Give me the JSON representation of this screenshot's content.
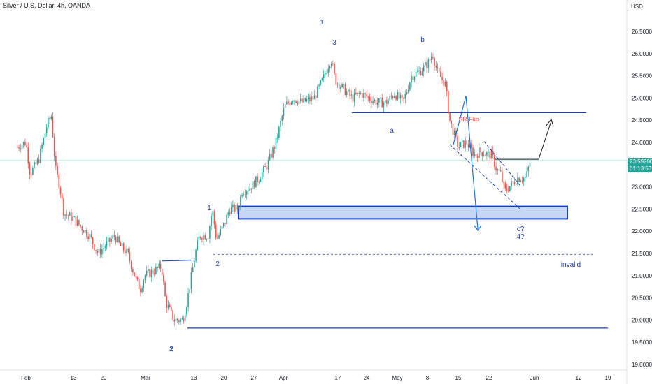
{
  "header": {
    "symbol_line": "Silver / U.S. Dollar, 4h, OANDA"
  },
  "currency_label": "USD",
  "price_badge": {
    "price": "23.59200",
    "countdown": "01:13:53"
  },
  "colors": {
    "up": "#26a69a",
    "down": "#ef5350",
    "annotation": "#1c3fbf",
    "zone_fill": "#bcd0f5",
    "price_line": "#7ed3c9",
    "sr_flip": "#ef5350"
  },
  "chart_data": {
    "type": "candlestick",
    "title": "Silver / U.S. Dollar, 4h, OANDA",
    "ylabel": "USD",
    "ylim": [
      18.95,
      26.95
    ],
    "y_ticks": [
      "19.00000",
      "19.50000",
      "20.00000",
      "20.50000",
      "21.00000",
      "21.50000",
      "22.00000",
      "22.50000",
      "23.00000",
      "23.50000",
      "24.00000",
      "24.50000",
      "25.00000",
      "25.50000",
      "26.00000",
      "26.50000"
    ],
    "y_tick_values": [
      19.0,
      19.5,
      20.0,
      20.5,
      21.0,
      21.5,
      22.0,
      22.5,
      23.0,
      23.5,
      24.0,
      24.5,
      25.0,
      25.5,
      26.0,
      26.5
    ],
    "x_ticks": [
      "Feb",
      "13",
      "20",
      "Mar",
      "13",
      "20",
      "27",
      "Apr",
      "17",
      "24",
      "May",
      "8",
      "15",
      "22",
      "Jun",
      "12",
      "19"
    ],
    "price_path": [
      [
        "Jan 30",
        23.9
      ],
      [
        "Feb 1",
        24.0
      ],
      [
        "Feb 2",
        23.3
      ],
      [
        "Feb 4",
        23.6
      ],
      [
        "Feb 6",
        24.4
      ],
      [
        "Feb 7",
        24.6
      ],
      [
        "Feb 8",
        23.4
      ],
      [
        "Feb 9",
        23.0
      ],
      [
        "Feb 10",
        22.4
      ],
      [
        "Feb 12",
        22.3
      ],
      [
        "Feb 14",
        22.1
      ],
      [
        "Feb 16",
        21.9
      ],
      [
        "Feb 18",
        21.5
      ],
      [
        "Feb 20",
        21.7
      ],
      [
        "Feb 22",
        21.9
      ],
      [
        "Feb 23",
        21.7
      ],
      [
        "Feb 25",
        21.5
      ],
      [
        "Feb 27",
        20.9
      ],
      [
        "Feb 28",
        20.7
      ],
      [
        "Mar 1",
        21.0
      ],
      [
        "Mar 3",
        21.1
      ],
      [
        "Mar 5",
        21.2
      ],
      [
        "Mar 6",
        20.4
      ],
      [
        "Mar 8",
        20.0
      ],
      [
        "Mar 10",
        20.0
      ],
      [
        "Mar 11",
        20.4
      ],
      [
        "Mar 13",
        21.5
      ],
      [
        "Mar 14",
        21.9
      ],
      [
        "Mar 16",
        21.9
      ],
      [
        "Mar 17",
        22.5
      ],
      [
        "Mar 18",
        21.8
      ],
      [
        "Mar 20",
        22.2
      ],
      [
        "Mar 21",
        22.5
      ],
      [
        "Mar 23",
        22.5
      ],
      [
        "Mar 24",
        22.9
      ],
      [
        "Mar 26",
        23.0
      ],
      [
        "Mar 28",
        23.2
      ],
      [
        "Mar 30",
        23.5
      ],
      [
        "Apr 1",
        24.0
      ],
      [
        "Apr 3",
        24.8
      ],
      [
        "Apr 5",
        25.0
      ],
      [
        "Apr 7",
        24.9
      ],
      [
        "Apr 10",
        25.0
      ],
      [
        "Apr 12",
        25.4
      ],
      [
        "Apr 14",
        25.9
      ],
      [
        "Apr 15",
        25.4
      ],
      [
        "Apr 17",
        25.2
      ],
      [
        "Apr 19",
        25.0
      ],
      [
        "Apr 21",
        25.1
      ],
      [
        "Apr 23",
        25.0
      ],
      [
        "Apr 25",
        24.9
      ],
      [
        "Apr 27",
        24.9
      ],
      [
        "Apr 29",
        25.1
      ],
      [
        "May 1",
        24.9
      ],
      [
        "May 3",
        25.5
      ],
      [
        "May 5",
        25.6
      ],
      [
        "May 7",
        25.8
      ],
      [
        "May 8",
        26.0
      ],
      [
        "May 9",
        25.6
      ],
      [
        "May 11",
        25.3
      ],
      [
        "May 12",
        24.5
      ],
      [
        "May 14",
        23.9
      ],
      [
        "May 16",
        24.0
      ],
      [
        "May 18",
        23.7
      ],
      [
        "May 19",
        23.8
      ],
      [
        "May 22",
        23.7
      ],
      [
        "May 23",
        23.4
      ],
      [
        "May 24",
        23.3
      ],
      [
        "May 25",
        22.9
      ],
      [
        "May 27",
        23.1
      ],
      [
        "May 28",
        23.2
      ],
      [
        "May 30",
        23.2
      ],
      [
        "May 31",
        23.59
      ]
    ],
    "annotations": {
      "wave_labels": [
        "1",
        "3",
        "b",
        "a",
        "1",
        "2",
        "2",
        "c?",
        "4?"
      ],
      "sr_flip": "SR Flip",
      "invalid": "invalid"
    },
    "levels": {
      "resistance": 24.67,
      "support_zone": [
        22.28,
        22.56
      ],
      "invalidation": 21.48,
      "bottom_line": 19.82,
      "current_price": 23.592
    },
    "grid": false,
    "legend": "none"
  }
}
